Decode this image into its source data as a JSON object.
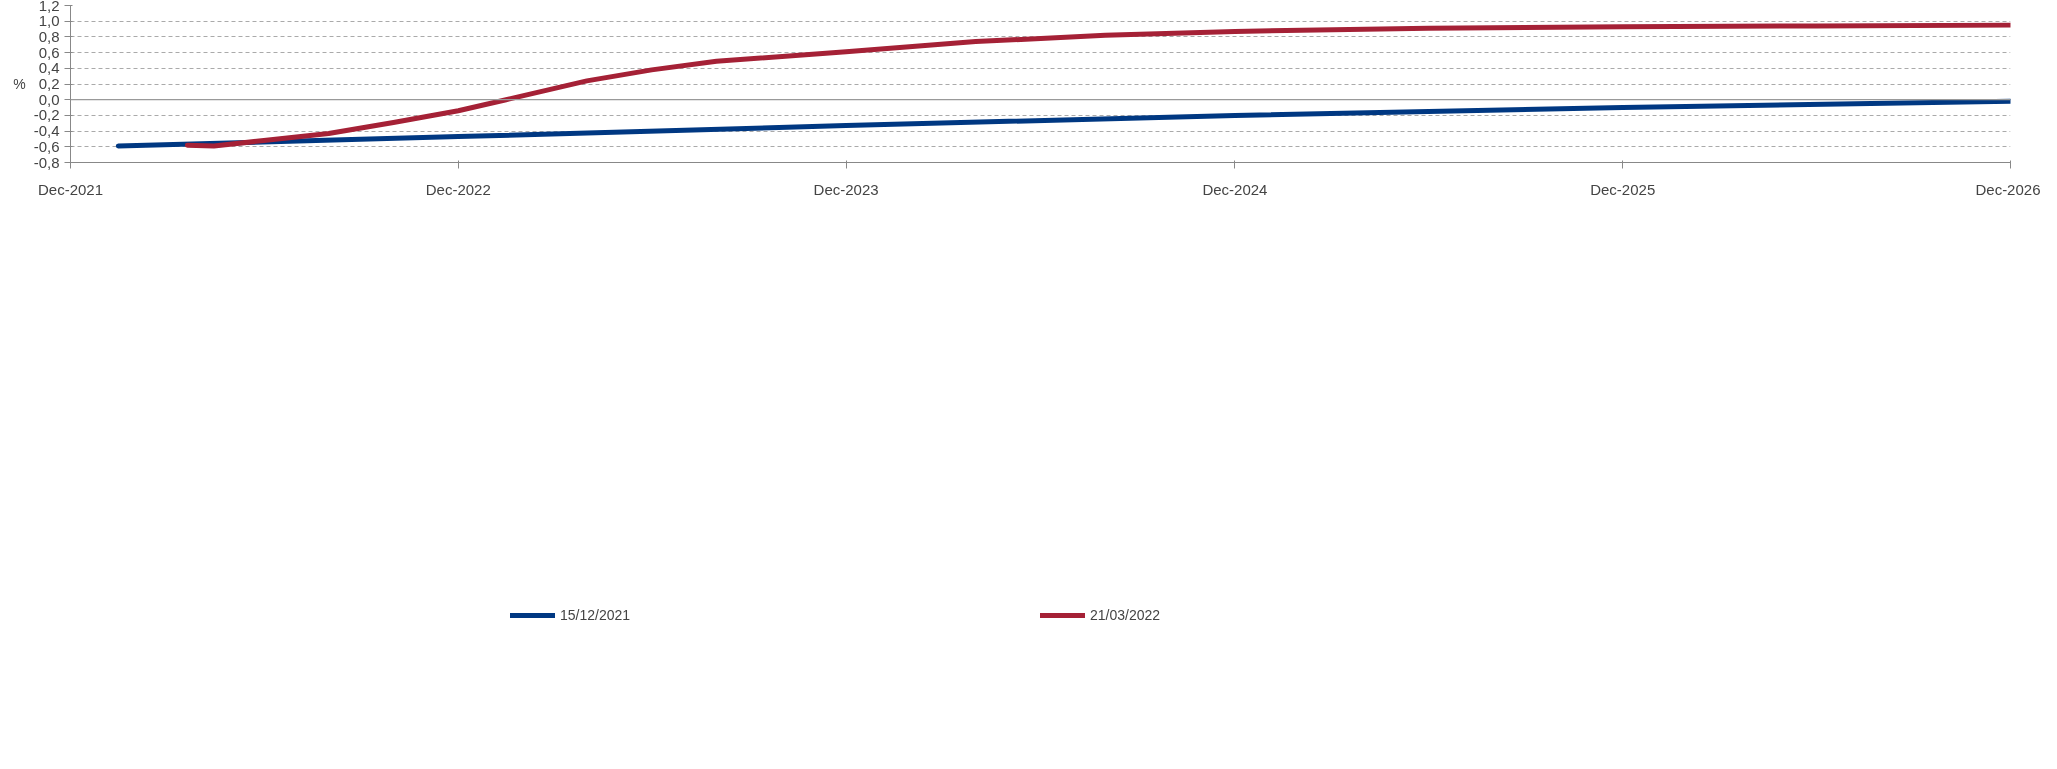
{
  "chart_data": {
    "type": "line",
    "ylabel": "%",
    "xlim": [
      "2021-12-01",
      "2026-12-01"
    ],
    "xticks": [
      {
        "value": "2021-12-01",
        "label": "Dec-2021"
      },
      {
        "value": "2022-12-01",
        "label": "Dec-2022"
      },
      {
        "value": "2023-12-01",
        "label": "Dec-2023"
      },
      {
        "value": "2024-12-01",
        "label": "Dec-2024"
      },
      {
        "value": "2025-12-01",
        "label": "Dec-2025"
      },
      {
        "value": "2026-12-01",
        "label": "Dec-2026"
      }
    ],
    "ylim": [
      -0.8,
      1.2
    ],
    "yticks": [
      {
        "value": -0.8,
        "label": "-0,8"
      },
      {
        "value": -0.6,
        "label": "-0,6"
      },
      {
        "value": -0.4,
        "label": "-0,4"
      },
      {
        "value": -0.2,
        "label": "-0,2"
      },
      {
        "value": 0,
        "label": "0,0"
      },
      {
        "value": 0.2,
        "label": "0,2"
      },
      {
        "value": 0.4,
        "label": "0,4"
      },
      {
        "value": 0.6,
        "label": "0,6"
      },
      {
        "value": 0.8,
        "label": "0,8"
      },
      {
        "value": 1.0,
        "label": "1,0"
      },
      {
        "value": 1.2,
        "label": "1,2"
      }
    ],
    "grid": "y",
    "legend": "bottom",
    "marker": "none",
    "line_style": "solid",
    "ref_lines": [
      {
        "axis": "y",
        "value": 0,
        "color": "#999999",
        "line_style": "solid"
      }
    ],
    "series": [
      {
        "name": "15/12/2021",
        "color": "#003882",
        "x": [
          "2022-01-15",
          "2022-12-01",
          "2023-12-01",
          "2024-12-01",
          "2025-12-01",
          "2026-12-01"
        ],
        "values": [
          -0.59,
          -0.47,
          -0.33,
          -0.2,
          -0.1,
          -0.02
        ]
      },
      {
        "name": "21/03/2022",
        "color": "#a52136",
        "x": [
          "2022-03-21",
          "2022-04-15",
          "2022-06-01",
          "2022-08-01",
          "2022-10-01",
          "2022-12-01",
          "2023-01-15",
          "2023-04-01",
          "2023-06-01",
          "2023-08-01",
          "2023-12-01",
          "2024-04-01",
          "2024-08-01",
          "2024-12-01",
          "2025-06-01",
          "2025-12-01",
          "2026-06-01",
          "2026-12-01"
        ],
        "values": [
          -0.58,
          -0.59,
          -0.52,
          -0.43,
          -0.29,
          -0.14,
          0.0,
          0.24,
          0.38,
          0.49,
          0.61,
          0.74,
          0.82,
          0.87,
          0.91,
          0.93,
          0.94,
          0.95
        ]
      }
    ]
  }
}
